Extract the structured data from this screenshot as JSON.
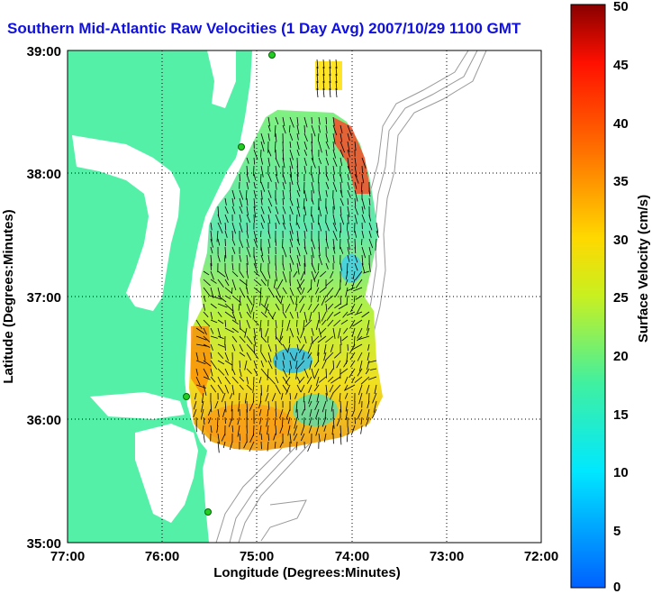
{
  "title": "Southern Mid-Atlantic Raw Velocities (1 Day Avg) 2007/10/29 1100 GMT",
  "map": {
    "xlabel": "Longitude (Degrees:Minutes)",
    "ylabel": "Latitude (Degrees:Minutes)",
    "lon_ticks": [
      "77:00",
      "76:00",
      "75:00",
      "74:00",
      "73:00",
      "72:00"
    ],
    "lat_ticks": [
      "39:00",
      "38:00",
      "37:00",
      "36:00",
      "35:00"
    ],
    "lon_range": [
      -77,
      -72
    ],
    "lat_range": [
      35,
      39
    ],
    "grid": "dotted",
    "land_color": "#55f0a8",
    "water_color": "#ffffff",
    "bathymetry_color": "#9a9a9a",
    "station_color": "#22cc22"
  },
  "colorbar": {
    "label": "Surface Velocity (cm/s)",
    "ticks": [
      "0",
      "5",
      "10",
      "15",
      "20",
      "25",
      "30",
      "35",
      "40",
      "45",
      "50"
    ],
    "range": [
      0,
      50
    ],
    "colormap": "jet"
  }
}
